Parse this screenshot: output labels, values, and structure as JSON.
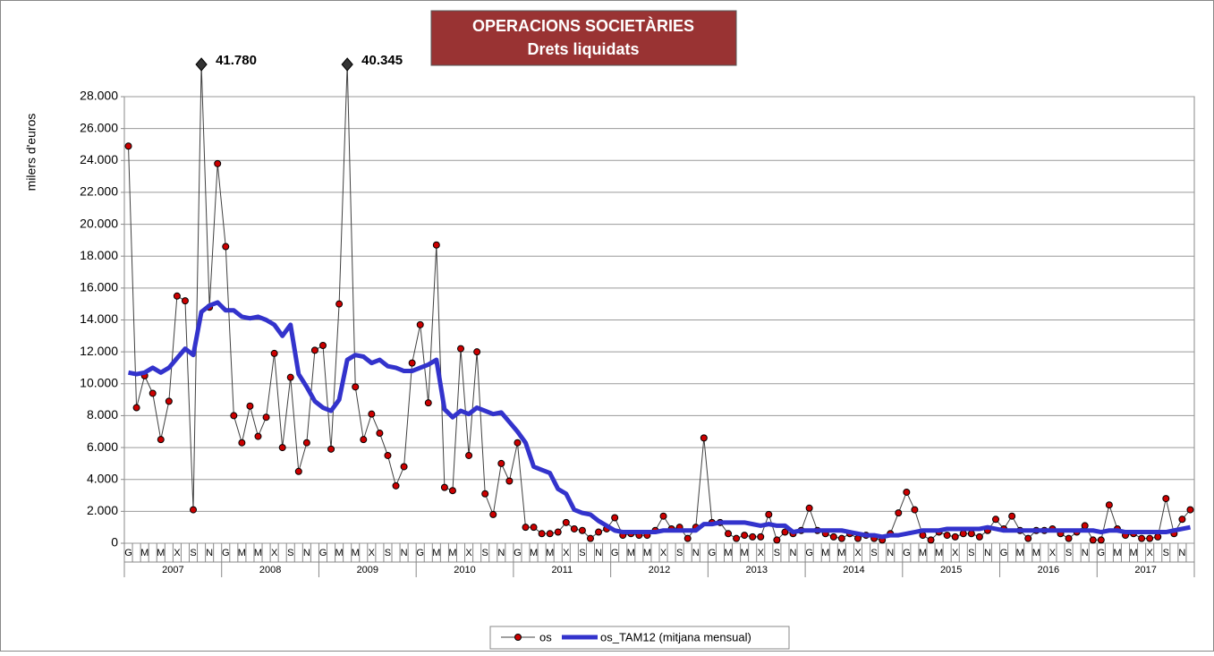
{
  "chart_data": {
    "type": "line",
    "title": [
      "OPERACIONS SOCIETÀRIES",
      "Drets liquidats"
    ],
    "y_label": "milers d'euros",
    "years": [
      "2007",
      "2008",
      "2009",
      "2010",
      "2011",
      "2012",
      "2013",
      "2014",
      "2015",
      "2016",
      "2017"
    ],
    "categories": [
      "G",
      null,
      "M",
      null,
      "M",
      null,
      "X",
      null,
      "S",
      null,
      "N",
      null,
      "G",
      null,
      "M",
      null,
      "M",
      null,
      "X",
      null,
      "S",
      null,
      "N",
      null,
      "G",
      null,
      "M",
      null,
      "M",
      null,
      "X",
      null,
      "S",
      null,
      "N",
      null,
      "G",
      null,
      "M",
      null,
      "M",
      null,
      "X",
      null,
      "S",
      null,
      "N",
      null,
      "G",
      null,
      "M",
      null,
      "M",
      null,
      "X",
      null,
      "S",
      null,
      "N",
      null,
      "G",
      null,
      "M",
      null,
      "M",
      null,
      "X",
      null,
      "S",
      null,
      "N",
      null,
      "G",
      null,
      "M",
      null,
      "M",
      null,
      "X",
      null,
      "S",
      null,
      "N",
      null,
      "G",
      null,
      "M",
      null,
      "M",
      null,
      "X",
      null,
      "S",
      null,
      "N",
      null,
      "G",
      null,
      "M",
      null,
      "M",
      null,
      "X",
      null,
      "S",
      null,
      "N",
      null,
      "G",
      null,
      "M",
      null,
      "M",
      null,
      "X",
      null,
      "S",
      null,
      "N",
      null,
      "G",
      null,
      "M",
      null,
      "M",
      null,
      "X",
      null,
      "S",
      null,
      "N",
      null
    ],
    "series": [
      {
        "name": "os",
        "color": "#404040",
        "marker_color": "#cc0000",
        "values": [
          24900,
          8500,
          10500,
          9400,
          6500,
          8900,
          15500,
          15200,
          2100,
          41780,
          14800,
          23800,
          18600,
          8000,
          6300,
          8600,
          6700,
          7900,
          11900,
          6000,
          10400,
          4500,
          6300,
          12100,
          12400,
          5900,
          15000,
          40345,
          9800,
          6500,
          8100,
          6900,
          5500,
          3600,
          4800,
          11300,
          13700,
          8800,
          18700,
          3500,
          3300,
          12200,
          5500,
          12000,
          3100,
          1800,
          5000,
          3900,
          6300,
          1000,
          1000,
          600,
          600,
          700,
          1300,
          900,
          800,
          300,
          700,
          900,
          1600,
          500,
          600,
          500,
          500,
          800,
          1700,
          900,
          1000,
          300,
          1000,
          6600,
          1300,
          1300,
          600,
          300,
          500,
          400,
          400,
          1800,
          200,
          700,
          600,
          800,
          2200,
          800,
          600,
          400,
          300,
          600,
          300,
          500,
          300,
          200,
          600,
          1900,
          3200,
          2100,
          500,
          200,
          700,
          500,
          400,
          600,
          600,
          400,
          800,
          1500,
          900,
          1700,
          800,
          300,
          800,
          800,
          900,
          600,
          300,
          700,
          1100,
          200,
          200,
          2400,
          900,
          500,
          600,
          300,
          300,
          400,
          2800,
          600,
          1500,
          2100
        ],
        "value_labels": [
          null,
          null,
          null,
          null,
          null,
          null,
          null,
          null,
          null,
          "41.780",
          null,
          null,
          null,
          null,
          null,
          null,
          null,
          null,
          null,
          null,
          null,
          null,
          null,
          null,
          null,
          null,
          null,
          "40.345",
          null,
          null,
          null,
          null,
          null,
          null,
          null,
          null,
          null,
          null,
          null,
          null,
          null,
          null,
          null,
          null,
          null,
          null,
          null,
          null,
          null,
          null,
          null,
          null,
          null,
          null,
          null,
          null,
          null,
          null,
          null,
          null,
          null,
          null,
          null,
          null,
          null,
          null,
          null,
          null,
          null,
          null,
          null,
          null,
          null,
          null,
          null,
          null,
          null,
          null,
          null,
          null,
          null,
          null,
          null,
          null,
          null,
          null,
          null,
          null,
          null,
          null,
          null,
          null,
          null,
          null,
          null,
          null,
          null,
          null,
          null,
          null,
          null,
          null,
          null,
          null,
          null,
          null,
          null,
          null,
          null,
          null,
          null,
          null,
          null,
          null,
          null,
          null,
          null,
          null,
          null,
          null,
          null,
          null,
          null,
          null,
          null,
          null,
          null,
          null,
          null,
          null,
          null,
          null
        ]
      },
      {
        "name": "os_TAM12 (mitjana mensual)",
        "color": "#3333cc",
        "values": [
          10700,
          10600,
          10700,
          11000,
          10700,
          11000,
          11600,
          12200,
          11800,
          14500,
          14900,
          15100,
          14600,
          14600,
          14200,
          14100,
          14200,
          14000,
          13700,
          13000,
          13700,
          10600,
          9800,
          8900,
          8500,
          8300,
          9000,
          11500,
          11800,
          11700,
          11300,
          11500,
          11100,
          11000,
          10800,
          10800,
          11000,
          11200,
          11500,
          8400,
          7900,
          8300,
          8100,
          8500,
          8300,
          8100,
          8200,
          7600,
          7000,
          6300,
          4800,
          4600,
          4400,
          3400,
          3100,
          2100,
          1900,
          1800,
          1400,
          1100,
          800,
          700,
          700,
          700,
          700,
          700,
          800,
          800,
          800,
          800,
          800,
          1200,
          1200,
          1300,
          1300,
          1300,
          1300,
          1200,
          1100,
          1200,
          1100,
          1100,
          700,
          800,
          800,
          800,
          800,
          800,
          800,
          700,
          600,
          500,
          500,
          400,
          500,
          500,
          600,
          700,
          800,
          800,
          800,
          900,
          900,
          900,
          900,
          900,
          1000,
          900,
          800,
          800,
          800,
          800,
          800,
          800,
          800,
          800,
          800,
          800,
          800,
          800,
          700,
          800,
          800,
          700,
          700,
          700,
          700,
          700,
          700,
          800,
          900,
          1000
        ]
      }
    ],
    "ylim": [
      0,
      28000
    ],
    "yticks": [
      0,
      {
        "value": 2000,
        "label": "2.000"
      },
      {
        "value": 4000,
        "label": "4.000"
      },
      {
        "value": 6000,
        "label": "6.000"
      },
      {
        "value": 8000,
        "label": "8.000"
      },
      {
        "value": 10000,
        "label": "10.000"
      },
      {
        "value": 12000,
        "label": "12.000"
      },
      {
        "value": 14000,
        "label": "14.000"
      },
      {
        "value": 16000,
        "label": "16.000"
      },
      {
        "value": 18000,
        "label": "18.000"
      },
      {
        "value": 20000,
        "label": "20.000"
      },
      {
        "value": 22000,
        "label": "22.000"
      },
      {
        "value": 24000,
        "label": "24.000"
      },
      {
        "value": 26000,
        "label": "26.000"
      },
      {
        "value": 28000,
        "label": "28.000"
      }
    ],
    "grid": true,
    "legend": "bottom"
  }
}
